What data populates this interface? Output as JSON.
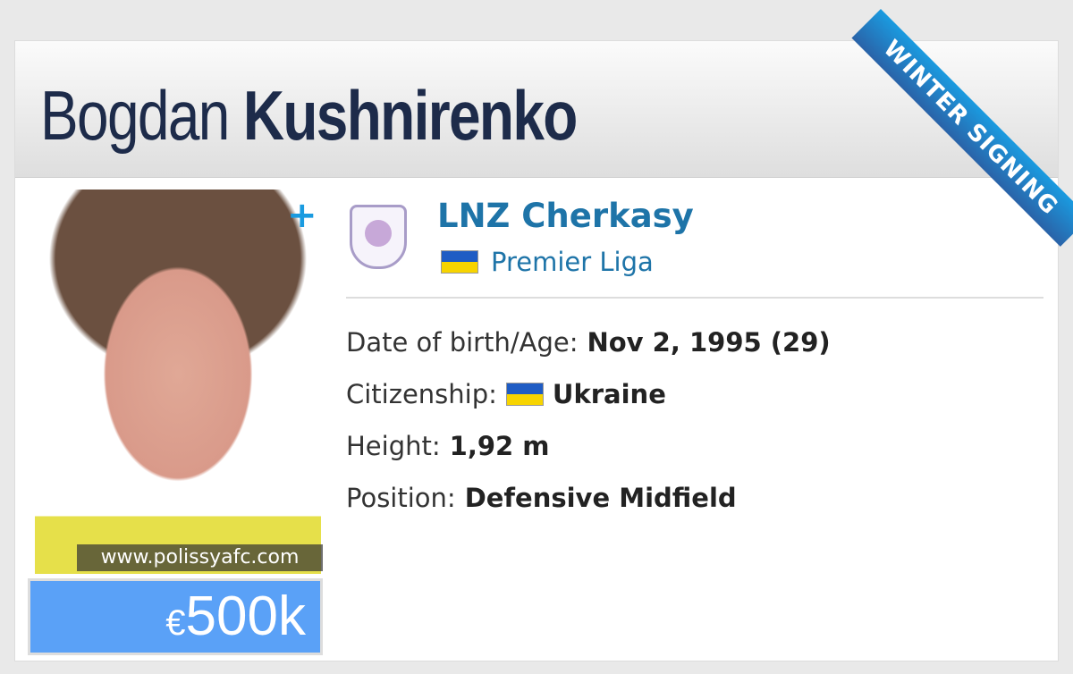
{
  "player": {
    "first_name": "Bogdan",
    "last_name": "Kushnirenko"
  },
  "ribbon": "WINTER SIGNING",
  "photo_credit": "www.polissyafc.com",
  "market_value": {
    "currency": "€",
    "amount": "500k"
  },
  "club": {
    "name": "LNZ Cherkasy",
    "league": "Premier Liga",
    "league_flag": "ukraine-flag"
  },
  "details": [
    {
      "label": "Date of birth/Age:",
      "value": "Nov 2, 1995 (29)"
    },
    {
      "label": "Citizenship:",
      "value": "Ukraine",
      "flag": "ukraine-flag"
    },
    {
      "label": "Height:",
      "value": "1,92 m"
    },
    {
      "label": "Position:",
      "value": "Defensive Midfield"
    }
  ],
  "colors": {
    "accent": "#1e74a8",
    "value_bg": "#5aa1f7",
    "ribbon": "#1a9be0"
  }
}
